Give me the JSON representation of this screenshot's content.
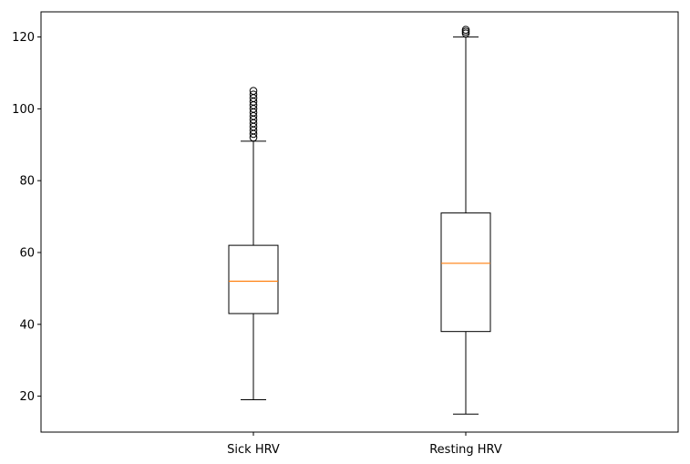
{
  "chart_data": {
    "type": "box",
    "title": "",
    "xlabel": "",
    "ylabel": "",
    "ylim": [
      10,
      127
    ],
    "yticks": [
      20,
      40,
      60,
      80,
      100,
      120
    ],
    "grid": false,
    "categories": [
      "Sick HRV",
      "Resting HRV"
    ],
    "boxes": [
      {
        "name": "Sick HRV",
        "whisker_low": 19,
        "q1": 43,
        "median": 52,
        "q3": 62,
        "whisker_high": 91,
        "outliers": [
          92,
          93,
          94,
          95,
          96,
          97,
          98,
          99,
          100,
          101,
          102,
          103,
          104,
          105
        ]
      },
      {
        "name": "Resting HRV",
        "whisker_low": 15,
        "q1": 38,
        "median": 57,
        "q3": 71,
        "whisker_high": 120,
        "outliers": [
          121,
          121.5,
          122
        ]
      }
    ],
    "colors": {
      "box": "#000000",
      "median": "#ff7f0e",
      "outlier": "#000000",
      "axes": "#000000"
    }
  }
}
